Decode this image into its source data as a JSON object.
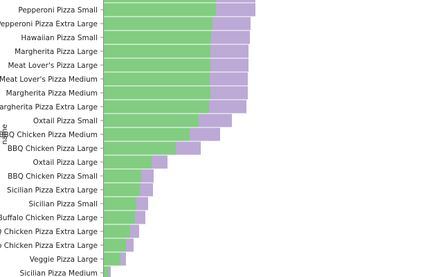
{
  "chart_data": {
    "type": "bar",
    "orientation": "horizontal",
    "stacked": true,
    "ylabel": "name",
    "categories": [
      "",
      "Pepperoni Pizza Small",
      "Pepperoni Pizza Extra Large",
      "Hawaiian Pizza Small",
      "Margherita Pizza Large",
      "Meat Lover's Pizza Large",
      "Meat Lover's Pizza Medium",
      "Margherita Pizza Medium",
      "Margherita Pizza Extra Large",
      "Oxtail Pizza Small",
      "BBQ Chicken Pizza Medium",
      "BBQ Chicken Pizza Large",
      "Oxtail Pizza Large",
      "BBQ Chicken Pizza Small",
      "Sicilian Pizza Extra Large",
      "Sicilian Pizza Small",
      "Buffalo Chicken Pizza Large",
      "BBQ Chicken Pizza Extra Large",
      "Buffalo Chicken Pizza Extra Large",
      "Veggie Pizza Large",
      "Sicilian Pizza Medium"
    ],
    "series": [
      {
        "color": "#82cd81",
        "values": [
          162,
          162,
          157,
          155,
          154,
          154,
          153,
          154,
          152,
          137,
          124,
          104,
          69,
          54,
          52,
          47,
          45,
          38,
          32,
          24,
          7
        ]
      },
      {
        "color": "#bca9d6",
        "values": [
          57,
          57,
          55,
          56,
          55,
          55,
          55,
          54,
          54,
          48,
          44,
          36,
          23,
          18,
          19,
          17,
          15,
          13,
          11,
          8,
          3
        ]
      }
    ],
    "xlim": [
      0,
      490
    ],
    "grid": false,
    "legend": "none"
  }
}
